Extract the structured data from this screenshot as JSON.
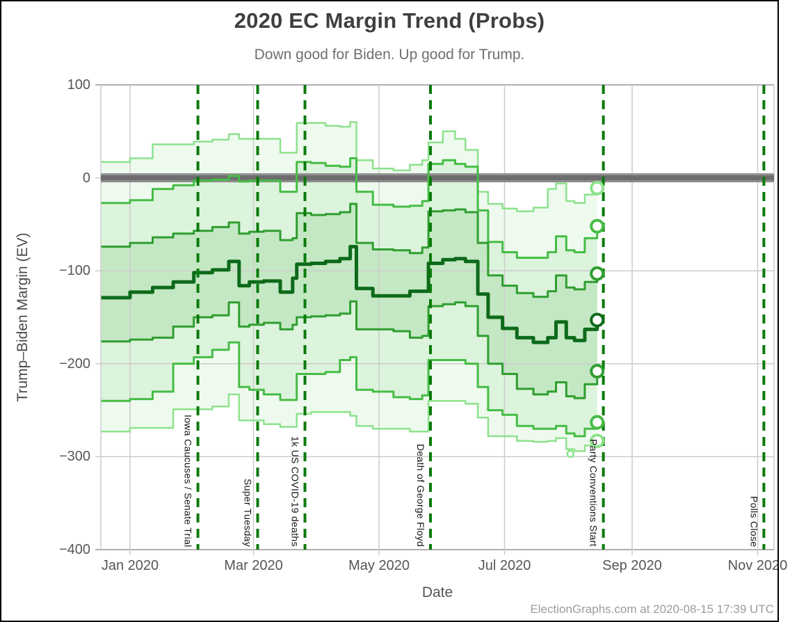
{
  "figure": {
    "watermark": "ElectionGraphs.com at 2020-08-15 17:39 UTC"
  },
  "chart_data": {
    "type": "area",
    "title": "2020 EC Margin Trend (Probs)",
    "subtitle": "Down good for Biden. Up good for Trump.",
    "xlabel": "Date",
    "ylabel": "Trump–Biden Margin (EV)",
    "ylim": [
      -400,
      100
    ],
    "x_unit": "days since 2020-01-01",
    "xlim": [
      -14,
      313
    ],
    "grid": true,
    "zero_band_value": 0,
    "last_data_day": 227,
    "days": [
      -14,
      0,
      11,
      21,
      31,
      40,
      48,
      53,
      58,
      65,
      73,
      79,
      81,
      88,
      95,
      102,
      107,
      110,
      118,
      128,
      136,
      142,
      145,
      152,
      158,
      163,
      169,
      174,
      181,
      188,
      196,
      203,
      207,
      212,
      216,
      221,
      227
    ],
    "series": [
      {
        "name": "trump-best-case-p01",
        "color": "#8de28d",
        "width": 2.5,
        "values": [
          17,
          21,
          36,
          36,
          39,
          41,
          47,
          42,
          42,
          42,
          27,
          27,
          59,
          59,
          56,
          55,
          60,
          19,
          10,
          8,
          14,
          19,
          38,
          50,
          42,
          30,
          -15,
          -28,
          -33,
          -36,
          -32,
          -12,
          -6,
          -25,
          -27,
          -18,
          -11
        ]
      },
      {
        "name": "p10",
        "color": "#45bd45",
        "width": 3,
        "values": [
          -27,
          -24,
          -12,
          -8,
          -3,
          -2,
          2,
          -4,
          -3,
          -3,
          -15,
          -15,
          17,
          16,
          13,
          12,
          21,
          -15,
          -29,
          -31,
          -30,
          -25,
          15,
          19,
          15,
          12,
          -35,
          -69,
          -80,
          -86,
          -86,
          -80,
          -63,
          -78,
          -80,
          -65,
          -52
        ]
      },
      {
        "name": "p25",
        "color": "#2f9e2f",
        "width": 3,
        "values": [
          -74,
          -70,
          -64,
          -60,
          -57,
          -53,
          -48,
          -60,
          -58,
          -57,
          -67,
          -65,
          -38,
          -40,
          -39,
          -37,
          -28,
          -70,
          -77,
          -78,
          -81,
          -75,
          -36,
          -35,
          -34,
          -37,
          -70,
          -105,
          -116,
          -124,
          -128,
          -122,
          -105,
          -118,
          -120,
          -112,
          -103
        ]
      },
      {
        "name": "median",
        "color": "#0d6a1a",
        "width": 5,
        "values": [
          -129,
          -123,
          -118,
          -112,
          -102,
          -99,
          -90,
          -116,
          -112,
          -111,
          -123,
          -108,
          -93,
          -92,
          -90,
          -87,
          -74,
          -119,
          -127,
          -127,
          -122,
          -122,
          -92,
          -88,
          -87,
          -90,
          -125,
          -150,
          -162,
          -172,
          -177,
          -172,
          -155,
          -172,
          -175,
          -163,
          -153
        ]
      },
      {
        "name": "p75",
        "color": "#2f9e2f",
        "width": 3,
        "values": [
          -176,
          -174,
          -172,
          -160,
          -150,
          -148,
          -134,
          -160,
          -158,
          -156,
          -163,
          -158,
          -150,
          -149,
          -148,
          -146,
          -133,
          -163,
          -163,
          -165,
          -172,
          -170,
          -138,
          -136,
          -134,
          -138,
          -170,
          -200,
          -211,
          -227,
          -233,
          -230,
          -220,
          -235,
          -237,
          -222,
          -208
        ]
      },
      {
        "name": "p90",
        "color": "#45bd45",
        "width": 3,
        "values": [
          -240,
          -238,
          -230,
          -200,
          -193,
          -185,
          -177,
          -225,
          -228,
          -233,
          -239,
          -239,
          -211,
          -211,
          -209,
          -196,
          -193,
          -228,
          -230,
          -236,
          -238,
          -234,
          -196,
          -196,
          -196,
          -200,
          -225,
          -250,
          -255,
          -267,
          -270,
          -270,
          -267,
          -275,
          -278,
          -270,
          -263
        ]
      },
      {
        "name": "biden-best-case-p99",
        "color": "#8de28d",
        "width": 2.5,
        "values": [
          -273,
          -269,
          -269,
          -249,
          -249,
          -246,
          -233,
          -261,
          -261,
          -265,
          -268,
          -268,
          -254,
          -252,
          -252,
          -252,
          -256,
          -267,
          -270,
          -270,
          -273,
          -273,
          -240,
          -240,
          -240,
          -243,
          -258,
          -278,
          -278,
          -283,
          -284,
          -283,
          -280,
          -292,
          -294,
          -288,
          -283
        ]
      }
    ],
    "bands": [
      {
        "upper": 0,
        "lower": 6,
        "fill": "#eefaee"
      },
      {
        "upper": 1,
        "lower": 5,
        "fill": "#dcf3dc"
      },
      {
        "upper": 2,
        "lower": 4,
        "fill": "#c3e8c3"
      }
    ],
    "end_markers": {
      "day": 227,
      "values": [
        -11,
        -52,
        -103,
        -153,
        -208,
        -263,
        -283
      ]
    },
    "dip_marker": {
      "series": 6,
      "day": 214,
      "value": -297
    },
    "events": [
      {
        "day": 33,
        "label": "Iowa Caucuses / Senate Trial"
      },
      {
        "day": 62,
        "label": "Super Tuesday"
      },
      {
        "day": 85,
        "label": "1k US COVID-19 deaths"
      },
      {
        "day": 146,
        "label": "Death of George Floyd"
      },
      {
        "day": 230,
        "label": "Party Conventions Start"
      },
      {
        "day": 308,
        "label": "Polls Close"
      }
    ],
    "event_line_color": "#0b7a0b",
    "zero_band_colors": [
      "#8f8f8f",
      "#6d6d6d"
    ],
    "grid_color": "#cccccc",
    "border_color": "#b0b0b0",
    "x_ticks": [
      {
        "day": 0,
        "label": "Jan 2020"
      },
      {
        "day": 60,
        "label": "Mar 2020"
      },
      {
        "day": 121,
        "label": "May 2020"
      },
      {
        "day": 182,
        "label": "Jul 2020"
      },
      {
        "day": 244,
        "label": "Sep 2020"
      },
      {
        "day": 305,
        "label": "Nov 2020"
      }
    ],
    "y_ticks": [
      {
        "value": 100,
        "label": "100"
      },
      {
        "value": 0,
        "label": "0"
      },
      {
        "value": -100,
        "label": "−100"
      },
      {
        "value": -200,
        "label": "−200"
      },
      {
        "value": -300,
        "label": "−300"
      },
      {
        "value": -400,
        "label": "−400"
      }
    ]
  }
}
